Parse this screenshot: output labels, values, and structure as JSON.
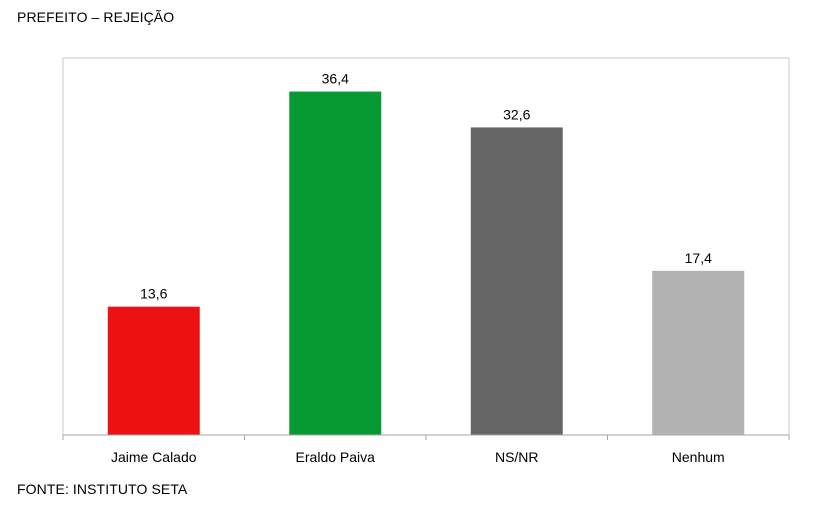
{
  "header": {
    "title": "PREFEITO – REJEIÇÃO"
  },
  "footer": {
    "source": "FONTE: INSTITUTO SETA"
  },
  "chart_data": {
    "type": "bar",
    "title": "PREFEITO – REJEIÇÃO",
    "xlabel": "",
    "ylabel": "",
    "categories": [
      "Jaime Calado",
      "Eraldo Paiva",
      "NS/NR",
      "Nenhum"
    ],
    "values": [
      13.6,
      36.4,
      32.6,
      17.4
    ],
    "value_labels": [
      "13,6",
      "36,4",
      "32,6",
      "17,4"
    ],
    "bar_colors": [
      "#ee1111",
      "#079a32",
      "#666666",
      "#b2b2b2"
    ],
    "ylim": [
      0,
      40
    ],
    "grid": false,
    "legend": "none"
  }
}
